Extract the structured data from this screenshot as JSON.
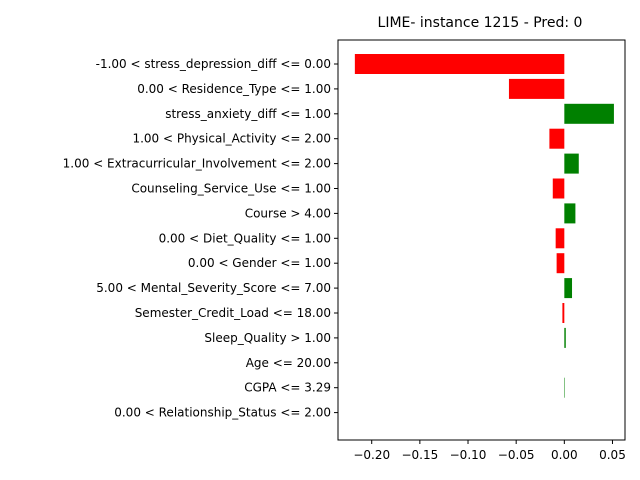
{
  "chart_data": {
    "type": "bar",
    "orientation": "horizontal",
    "title": "LIME- instance 1215 - Pred: 0",
    "xlabel": "",
    "ylabel": "",
    "xlim": [
      -0.235,
      0.063
    ],
    "xticks": [
      -0.2,
      -0.15,
      -0.1,
      -0.05,
      0.0,
      0.05
    ],
    "xtick_labels": [
      "−0.20",
      "−0.15",
      "−0.10",
      "−0.05",
      "0.00",
      "0.05"
    ],
    "grid": false,
    "colors": {
      "positive": "#008000",
      "negative": "#ff0000"
    },
    "categories": [
      "-1.00 < stress_depression_diff <= 0.00",
      "0.00 < Residence_Type <= 1.00",
      "stress_anxiety_diff <= 1.00",
      "1.00 < Physical_Activity <= 2.00",
      "1.00 < Extracurricular_Involvement <= 2.00",
      "Counseling_Service_Use <= 1.00",
      "Course > 4.00",
      "0.00 < Diet_Quality <= 1.00",
      "0.00 < Gender <= 1.00",
      "5.00 < Mental_Severity_Score <= 7.00",
      "Semester_Credit_Load <= 18.00",
      "Sleep_Quality > 1.00",
      "Age <= 20.00",
      "CGPA <= 3.29",
      "0.00 < Relationship_Status <= 2.00"
    ],
    "values": [
      -0.2175,
      -0.0575,
      0.0515,
      -0.0155,
      0.015,
      -0.012,
      0.0115,
      -0.009,
      -0.008,
      0.008,
      -0.002,
      0.0015,
      0.0,
      0.0005,
      0.0
    ]
  }
}
